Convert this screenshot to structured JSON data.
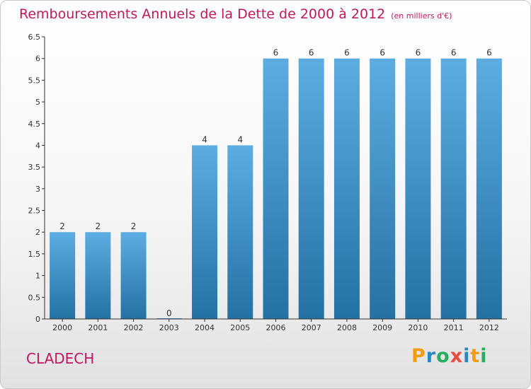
{
  "title": "Remboursements Annuels de la Dette de 2000 à 2012",
  "unit": "(en milliers d'€)",
  "place": "CLADECH",
  "logo": {
    "text": "Proxiti",
    "letter_colors": [
      "#f39c12",
      "#2e86c1",
      "#27ae60",
      "#e74c3c",
      "#2e86c1",
      "#f39c12",
      "#27ae60"
    ]
  },
  "chart_data": {
    "type": "bar",
    "title": "Remboursements Annuels de la Dette de 2000 à 2012",
    "subtitle": "(en milliers d'€)",
    "categories": [
      "2000",
      "2001",
      "2002",
      "2003",
      "2004",
      "2005",
      "2006",
      "2007",
      "2008",
      "2009",
      "2010",
      "2011",
      "2012"
    ],
    "values": [
      2,
      2,
      2,
      0,
      4,
      4,
      6,
      6,
      6,
      6,
      6,
      6,
      6
    ],
    "data_labels": [
      "2",
      "2",
      "2",
      "0",
      "4",
      "4",
      "6",
      "6",
      "6",
      "6",
      "6",
      "6",
      "6"
    ],
    "ylim": [
      0,
      6.5
    ],
    "yticks": [
      0,
      0.5,
      1,
      1.5,
      2,
      2.5,
      3,
      3.5,
      4,
      4.5,
      5,
      5.5,
      6,
      6.5
    ],
    "ytick_labels": [
      "0",
      "0.5",
      "1",
      "1.5",
      "2",
      "2.5",
      "3",
      "3.5",
      "4",
      "4.5",
      "5",
      "5.5",
      "6",
      "6.5"
    ],
    "grid": false,
    "bar_color": "#3a8fd6",
    "axis_color": "#333333"
  }
}
